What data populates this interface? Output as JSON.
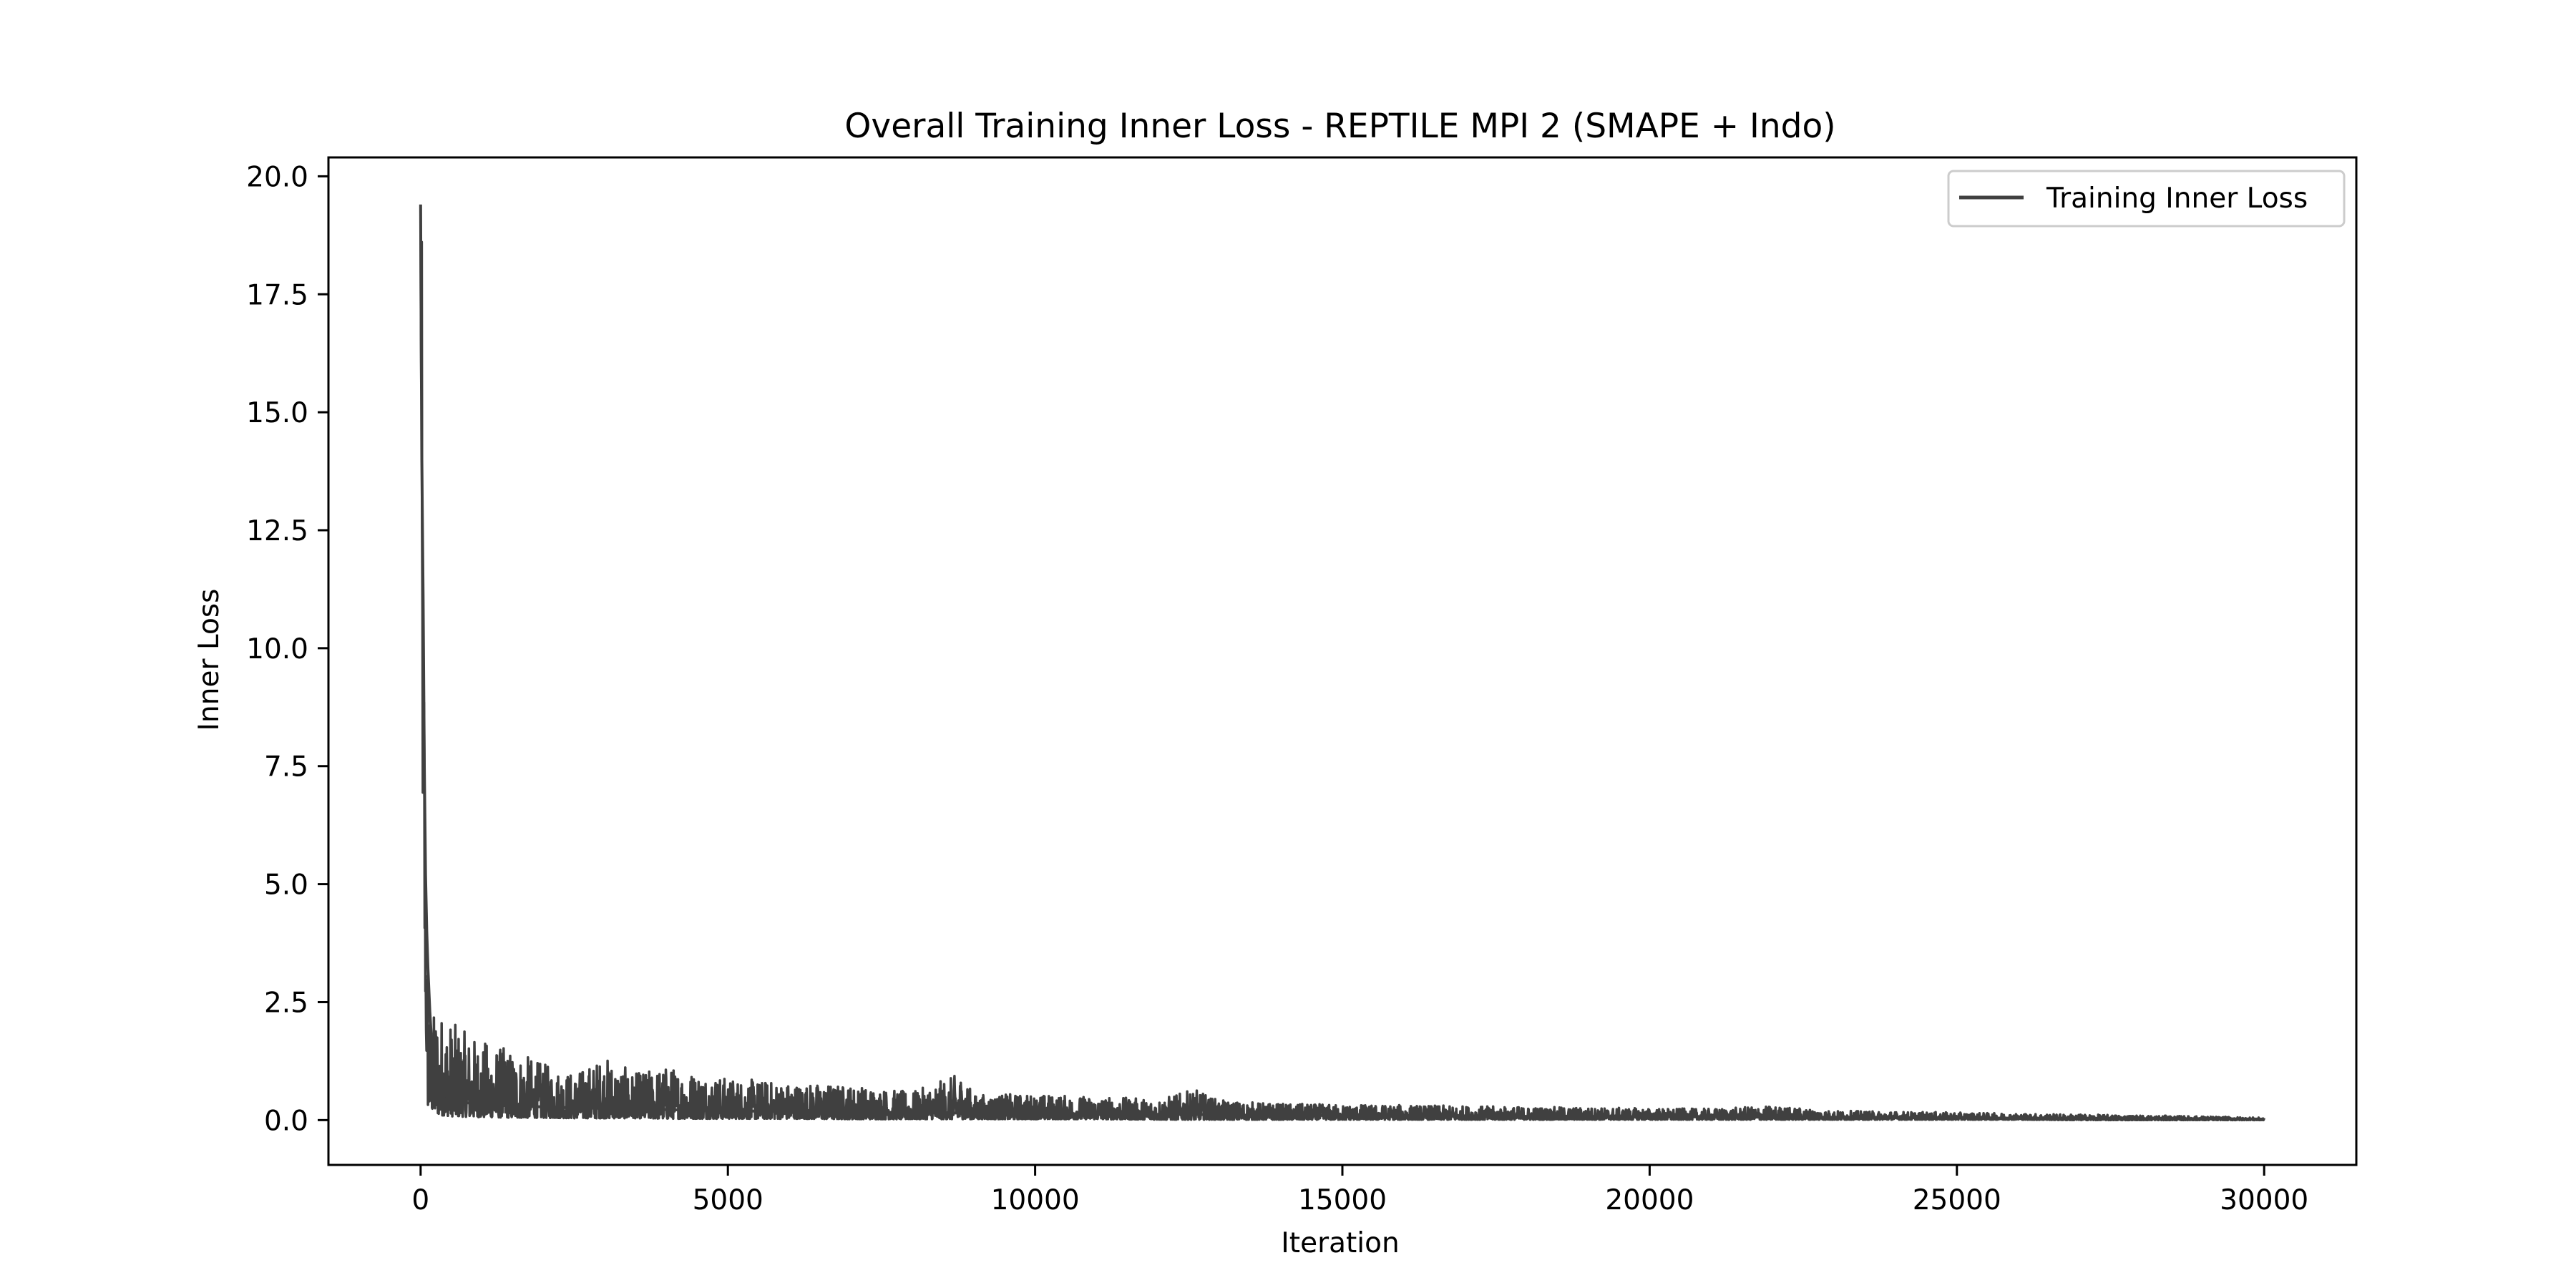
{
  "chart_data": {
    "type": "line",
    "title": "Overall Training Inner Loss - REPTILE MPI 2 (SMAPE + Indo)",
    "xlabel": "Iteration",
    "ylabel": "Inner Loss",
    "xlim": [
      -1500,
      31500
    ],
    "ylim": [
      -0.95,
      20.4
    ],
    "xticks": [
      0,
      5000,
      10000,
      15000,
      20000,
      25000,
      30000
    ],
    "xtick_labels": [
      "0",
      "5000",
      "10000",
      "15000",
      "20000",
      "25000",
      "30000"
    ],
    "yticks": [
      0.0,
      2.5,
      5.0,
      7.5,
      10.0,
      12.5,
      15.0,
      17.5,
      20.0
    ],
    "ytick_labels": [
      "0.0",
      "2.5",
      "5.0",
      "7.5",
      "10.0",
      "12.5",
      "15.0",
      "17.5",
      "20.0"
    ],
    "grid": false,
    "legend_position": "top-right",
    "series": [
      {
        "name": "Training Inner Loss",
        "color": "#404040",
        "x": [
          0,
          20,
          40,
          60,
          80,
          100,
          120,
          150,
          200,
          250,
          300,
          350,
          400,
          500,
          600,
          700,
          800,
          1000,
          1200,
          1500,
          2000,
          2500,
          3000,
          3500,
          4000,
          5000,
          6000,
          7000,
          8000,
          8800,
          9000,
          10000,
          11000,
          12000,
          12600,
          13000,
          14000,
          15000,
          16000,
          17000,
          18000,
          19000,
          20000,
          21000,
          22000,
          23000,
          24000,
          25000,
          26000,
          27000,
          28000,
          29000,
          30000
        ],
        "values": [
          19.4,
          14.0,
          11.1,
          7.5,
          5.2,
          4.0,
          3.2,
          2.3,
          1.2,
          0.6,
          0.55,
          0.5,
          0.45,
          0.42,
          0.4,
          0.38,
          0.36,
          0.34,
          0.32,
          0.3,
          0.28,
          0.26,
          0.25,
          0.24,
          0.22,
          0.2,
          0.18,
          0.17,
          0.16,
          0.15,
          0.15,
          0.14,
          0.13,
          0.12,
          0.12,
          0.11,
          0.1,
          0.1,
          0.09,
          0.09,
          0.08,
          0.08,
          0.07,
          0.07,
          0.06,
          0.06,
          0.05,
          0.05,
          0.04,
          0.04,
          0.03,
          0.03,
          0.02
        ],
        "upper_envelope": [
          19.4,
          18.6,
          11.1,
          11.0,
          5.2,
          4.1,
          3.2,
          2.4,
          2.2,
          2.5,
          2.4,
          2.3,
          2.2,
          2.1,
          2.0,
          1.9,
          1.8,
          1.7,
          1.6,
          1.5,
          1.2,
          1.0,
          1.35,
          1.0,
          1.15,
          0.9,
          0.8,
          0.75,
          0.6,
          1.0,
          0.55,
          0.55,
          0.5,
          0.45,
          0.65,
          0.42,
          0.35,
          0.33,
          0.32,
          0.3,
          0.28,
          0.27,
          0.25,
          0.24,
          0.3,
          0.2,
          0.18,
          0.16,
          0.14,
          0.12,
          0.1,
          0.08,
          0.05
        ],
        "lower_envelope": [
          19.4,
          9.7,
          6.1,
          4.0,
          2.5,
          1.1,
          0.3,
          0.25,
          0.2,
          0.15,
          0.12,
          0.1,
          0.1,
          0.08,
          0.08,
          0.07,
          0.07,
          0.06,
          0.06,
          0.05,
          0.05,
          0.04,
          0.04,
          0.04,
          0.03,
          0.03,
          0.03,
          0.02,
          0.02,
          0.02,
          0.02,
          0.02,
          0.02,
          0.01,
          0.01,
          0.01,
          0.01,
          0.01,
          0.01,
          0.01,
          0.01,
          0.01,
          0.01,
          0.01,
          0.01,
          0.01,
          0.01,
          0.01,
          0.01,
          0.0,
          0.0,
          0.0,
          0.0
        ]
      }
    ]
  }
}
